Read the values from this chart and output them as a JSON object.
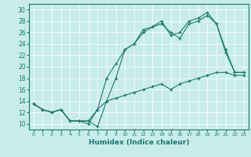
{
  "title": "",
  "xlabel": "Humidex (Indice chaleur)",
  "ylabel": "",
  "bg_color": "#c8ecec",
  "line_color": "#1a7a6a",
  "xlim": [
    -0.5,
    23.5
  ],
  "ylim": [
    9,
    31
  ],
  "xticks": [
    0,
    1,
    2,
    3,
    4,
    5,
    6,
    7,
    8,
    9,
    10,
    11,
    12,
    13,
    14,
    15,
    16,
    17,
    18,
    19,
    20,
    21,
    22,
    23
  ],
  "yticks": [
    10,
    12,
    14,
    16,
    18,
    20,
    22,
    24,
    26,
    28,
    30
  ],
  "series1_x": [
    0,
    1,
    2,
    3,
    4,
    5,
    6,
    7,
    8,
    9,
    10,
    11,
    12,
    13,
    14,
    15,
    16,
    17,
    18,
    19,
    20,
    21,
    22,
    23
  ],
  "series1_y": [
    13.5,
    12.5,
    12.0,
    12.5,
    10.5,
    10.5,
    10.5,
    9.5,
    14.0,
    14.5,
    15.0,
    15.5,
    16.0,
    16.5,
    17.0,
    16.0,
    17.0,
    17.5,
    18.0,
    18.5,
    19.0,
    19.0,
    18.5,
    18.5
  ],
  "series2_x": [
    0,
    1,
    2,
    3,
    4,
    5,
    6,
    7,
    8,
    9,
    10,
    11,
    12,
    13,
    14,
    15,
    16,
    17,
    18,
    19,
    20,
    21,
    22,
    23
  ],
  "series2_y": [
    13.5,
    12.5,
    12.0,
    12.5,
    10.5,
    10.5,
    10.5,
    12.5,
    14.0,
    18.0,
    23.0,
    24.0,
    26.5,
    27.0,
    28.0,
    25.5,
    26.0,
    28.0,
    28.5,
    29.5,
    27.5,
    23.0,
    19.0,
    19.0
  ],
  "series3_x": [
    0,
    1,
    2,
    3,
    4,
    5,
    6,
    7,
    8,
    9,
    10,
    11,
    12,
    13,
    14,
    15,
    16,
    17,
    18,
    19,
    20,
    21,
    22,
    23
  ],
  "series3_y": [
    13.5,
    12.5,
    12.0,
    12.5,
    10.5,
    10.5,
    10.0,
    12.5,
    18.0,
    20.5,
    23.0,
    24.0,
    26.0,
    27.0,
    27.5,
    26.0,
    25.0,
    27.5,
    28.0,
    29.0,
    27.5,
    22.5,
    19.0,
    19.0
  ]
}
